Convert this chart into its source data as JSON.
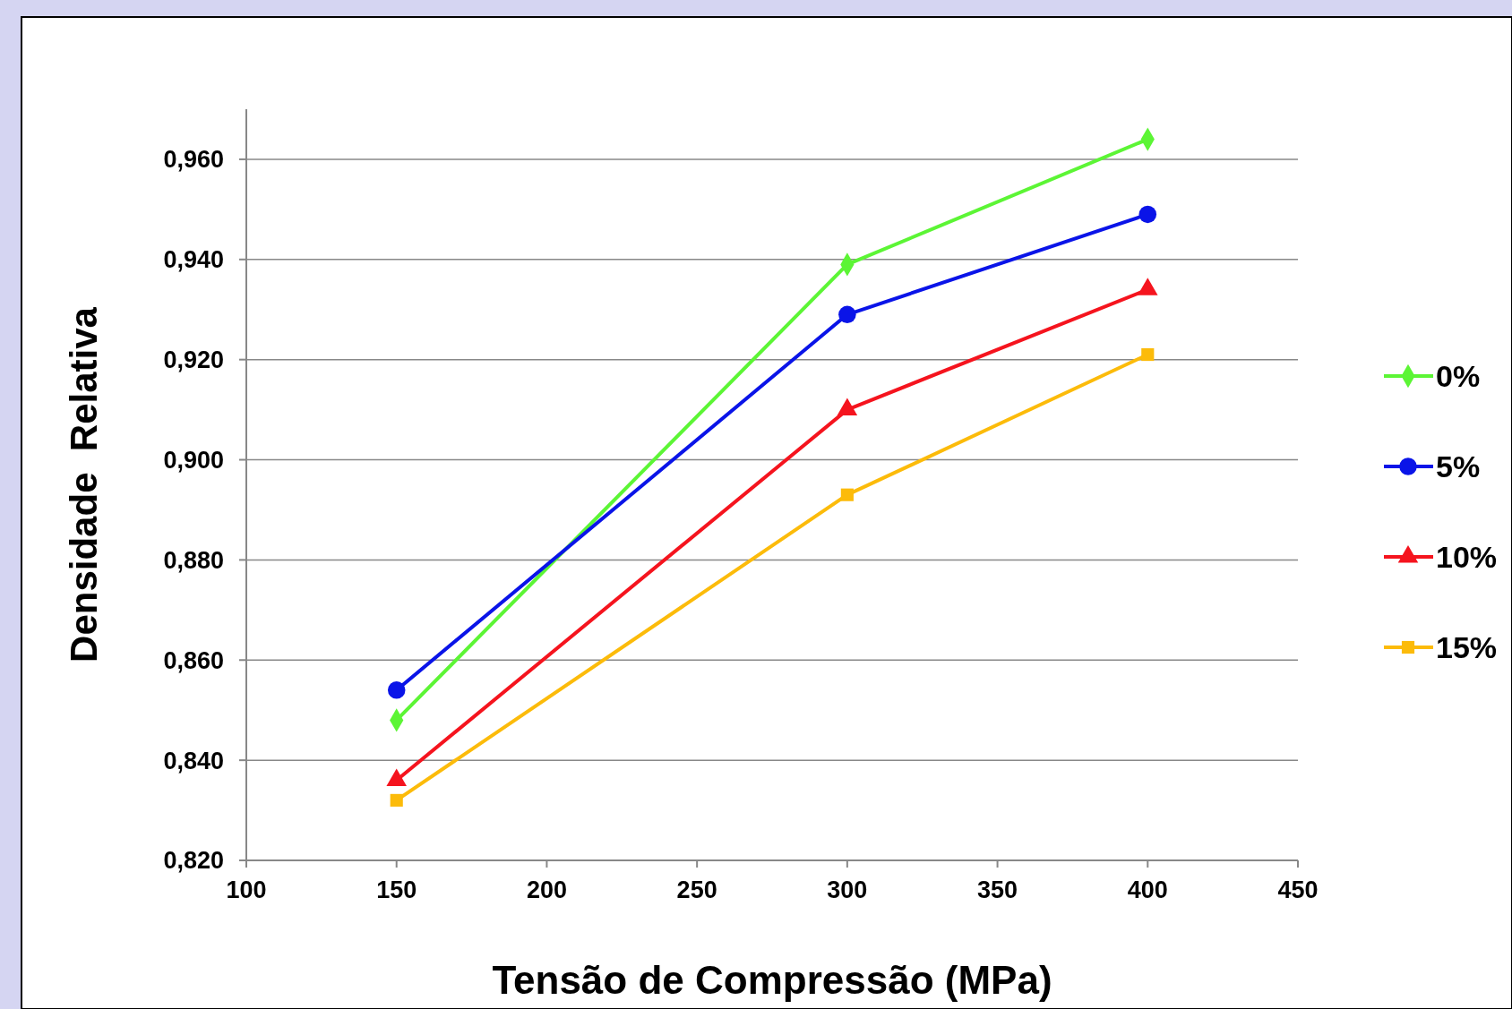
{
  "chart_data": {
    "type": "line",
    "xlabel": "Tensão de Compressão (MPa)",
    "ylabel": "Densidade  Relativa",
    "x": [
      150,
      300,
      400
    ],
    "series": [
      {
        "name": "0%",
        "color": "#5cf535",
        "marker": "diamond",
        "values": [
          0.848,
          0.939,
          0.964
        ]
      },
      {
        "name": "5%",
        "color": "#0a14e8",
        "marker": "circle",
        "values": [
          0.854,
          0.929,
          0.949
        ]
      },
      {
        "name": "10%",
        "color": "#f5141e",
        "marker": "triangle",
        "values": [
          0.836,
          0.91,
          0.934
        ]
      },
      {
        "name": "15%",
        "color": "#fcbb0a",
        "marker": "square",
        "values": [
          0.832,
          0.893,
          0.921
        ]
      }
    ],
    "xlim": [
      100,
      450
    ],
    "xticks": [
      100,
      150,
      200,
      250,
      300,
      350,
      400,
      450
    ],
    "ylim": [
      0.82,
      0.97
    ],
    "yticks": [
      {
        "value": 0.82,
        "label": "0,820"
      },
      {
        "value": 0.84,
        "label": "0,840"
      },
      {
        "value": 0.86,
        "label": "0,860"
      },
      {
        "value": 0.88,
        "label": "0,880"
      },
      {
        "value": 0.9,
        "label": "0,900"
      },
      {
        "value": 0.92,
        "label": "0,920"
      },
      {
        "value": 0.94,
        "label": "0,940"
      },
      {
        "value": 0.96,
        "label": "0,960"
      }
    ],
    "grid": "y",
    "legend": "right",
    "line_style": "solid"
  }
}
